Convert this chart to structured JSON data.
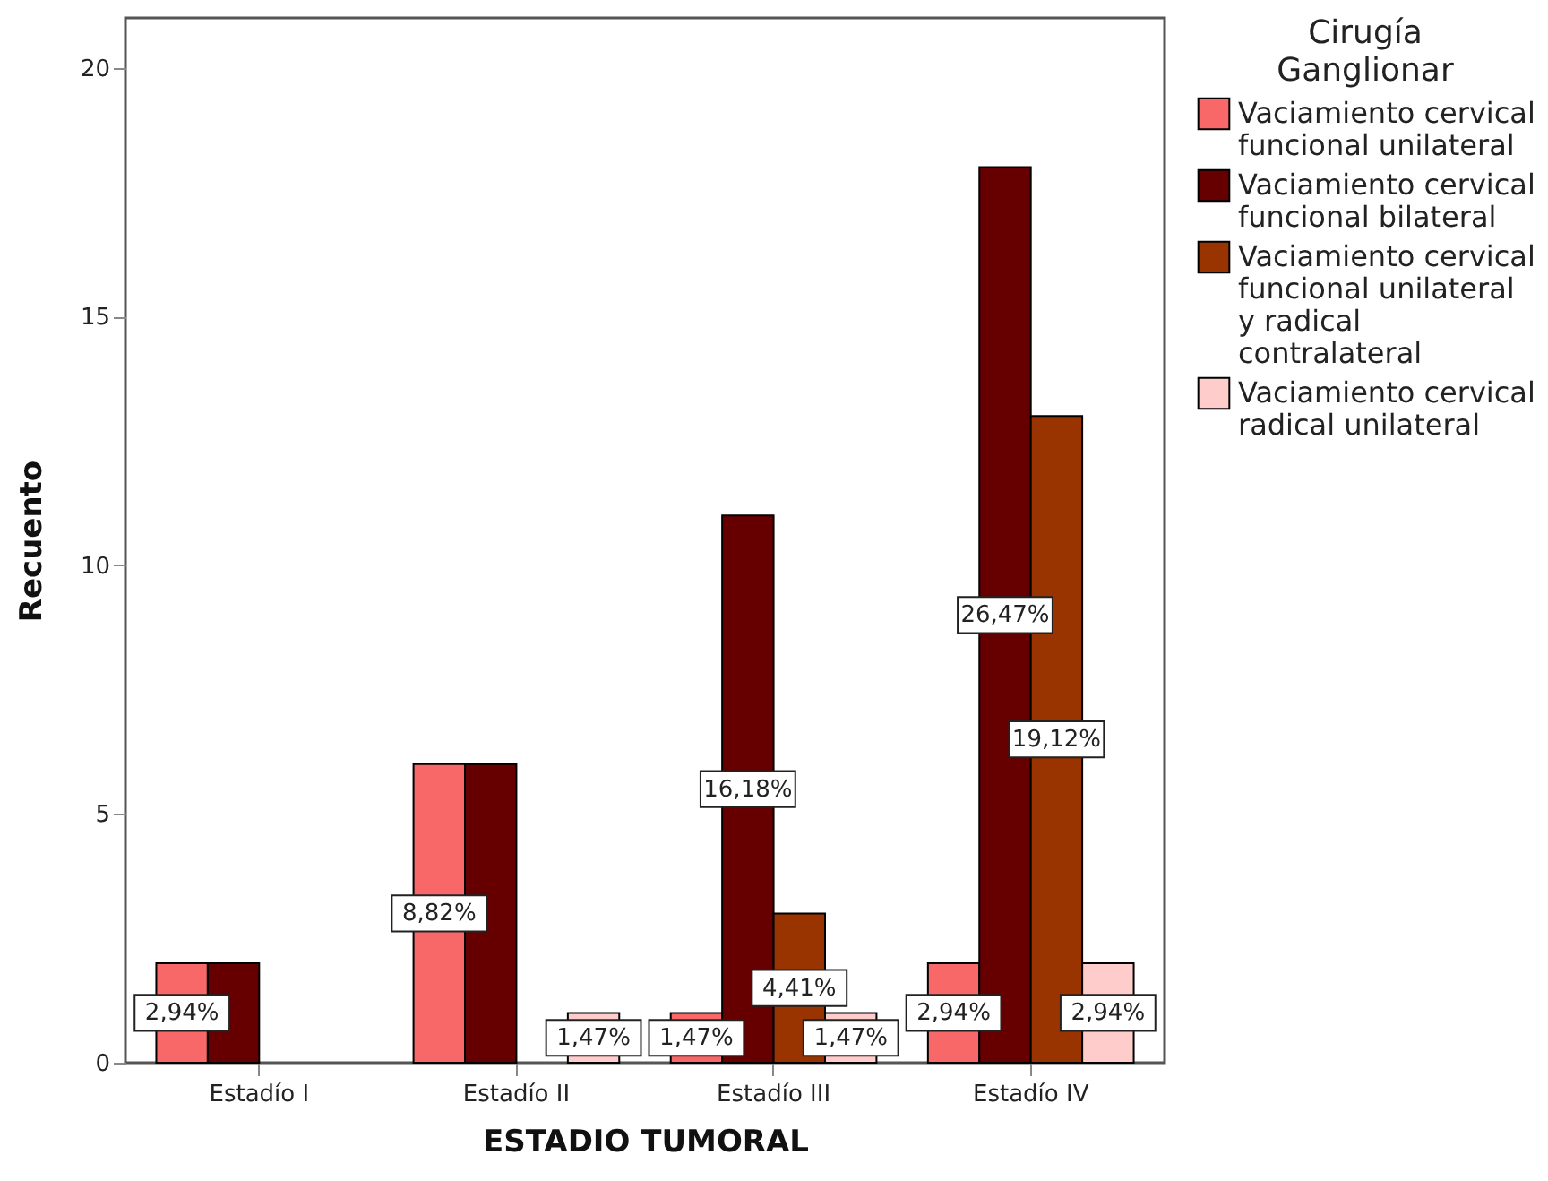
{
  "chart_data": {
    "type": "bar",
    "xlabel": "ESTADIO TUMORAL",
    "ylabel": "Recuento",
    "legend_title": "Cirugía Ganglionar",
    "categories": [
      "Estadío I",
      "Estadío II",
      "Estadío III",
      "Estadío IV"
    ],
    "series": [
      {
        "name": "Vaciamiento cervical funcional unilateral",
        "color": "#f96868",
        "values": [
          2,
          6,
          1,
          2
        ]
      },
      {
        "name": "Vaciamiento cervical funcional bilateral",
        "color": "#660000",
        "values": [
          2,
          6,
          11,
          18
        ]
      },
      {
        "name": "Vaciamiento cervical funcional unilateral y radical contralateral",
        "color": "#993300",
        "values": [
          null,
          null,
          3,
          13
        ]
      },
      {
        "name": "Vaciamiento cervical radical unilateral",
        "color": "#ffcccc",
        "values": [
          null,
          1,
          1,
          2
        ]
      }
    ],
    "annotations": [
      {
        "text": "2,94%",
        "x": "Estadío I",
        "y": 1
      },
      {
        "text": "8,82%",
        "x": "Estadío II",
        "y": 3
      },
      {
        "text": "1,47%",
        "x": "Estadío II",
        "y": 0.5
      },
      {
        "text": "1,47%",
        "x": "Estadío III",
        "y": 0.5
      },
      {
        "text": "16,18%",
        "x": "Estadío III",
        "y": 5.5
      },
      {
        "text": "4,41%",
        "x": "Estadío III",
        "y": 1.5
      },
      {
        "text": "1,47%",
        "x": "Estadío III",
        "y": 0.5
      },
      {
        "text": "2,94%",
        "x": "Estadío IV",
        "y": 1
      },
      {
        "text": "26,47%",
        "x": "Estadío IV",
        "y": 9
      },
      {
        "text": "19,12%",
        "x": "Estadío IV",
        "y": 6.5
      },
      {
        "text": "2,94%",
        "x": "Estadío IV",
        "y": 1
      }
    ],
    "ylim": [
      0,
      21
    ],
    "yticks": [
      0,
      5,
      10,
      15,
      20
    ],
    "grid": false,
    "legend": "right"
  }
}
